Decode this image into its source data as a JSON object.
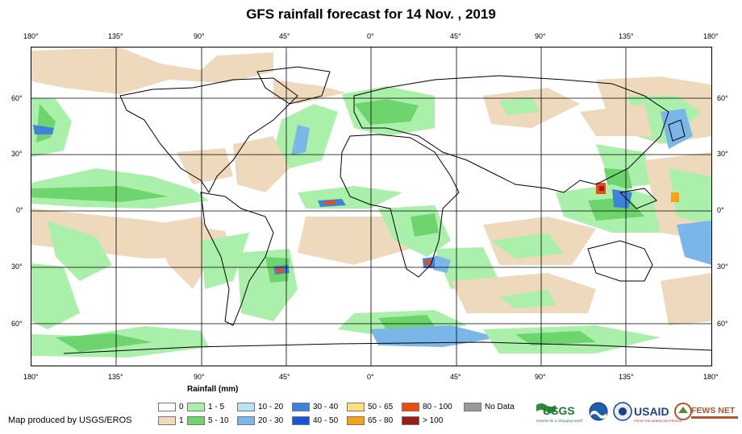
{
  "title": "GFS rainfall forecast for 14 Nov. , 2019",
  "map": {
    "lon_labels": [
      "180°",
      "135°",
      "90°",
      "45°",
      "0°",
      "45°",
      "90°",
      "135°",
      "180°"
    ],
    "lat_labels": [
      "60°",
      "30°",
      "0°",
      "30°",
      "60°"
    ]
  },
  "legend": {
    "title": "Rainfall (mm)",
    "items": [
      {
        "label": "0",
        "color": "#ffffff"
      },
      {
        "label": "1",
        "color": "#eed9bc"
      },
      {
        "label": "1 - 5",
        "color": "#aaf0aa"
      },
      {
        "label": "5 - 10",
        "color": "#6ed56e"
      },
      {
        "label": "10 - 20",
        "color": "#b6e4f6"
      },
      {
        "label": "20 - 30",
        "color": "#7ab6e8"
      },
      {
        "label": "30 - 40",
        "color": "#3e82dc"
      },
      {
        "label": "40 - 50",
        "color": "#1457d6"
      },
      {
        "label": "50 - 65",
        "color": "#ffe07a"
      },
      {
        "label": "65 - 80",
        "color": "#f6a214"
      },
      {
        "label": "80 - 100",
        "color": "#f04a10"
      },
      {
        "label": "> 100",
        "color": "#a01a1a"
      },
      {
        "label": "No Data",
        "color": "#999999"
      }
    ]
  },
  "credit": "Map produced by USGS/EROS",
  "logos": {
    "usgs": "USGS",
    "usgs_tagline": "science for a changing world",
    "usaid": "USAID",
    "usaid_tagline": "FROM THE AMERICAN PEOPLE",
    "fewsnet": "FEWS NET"
  }
}
